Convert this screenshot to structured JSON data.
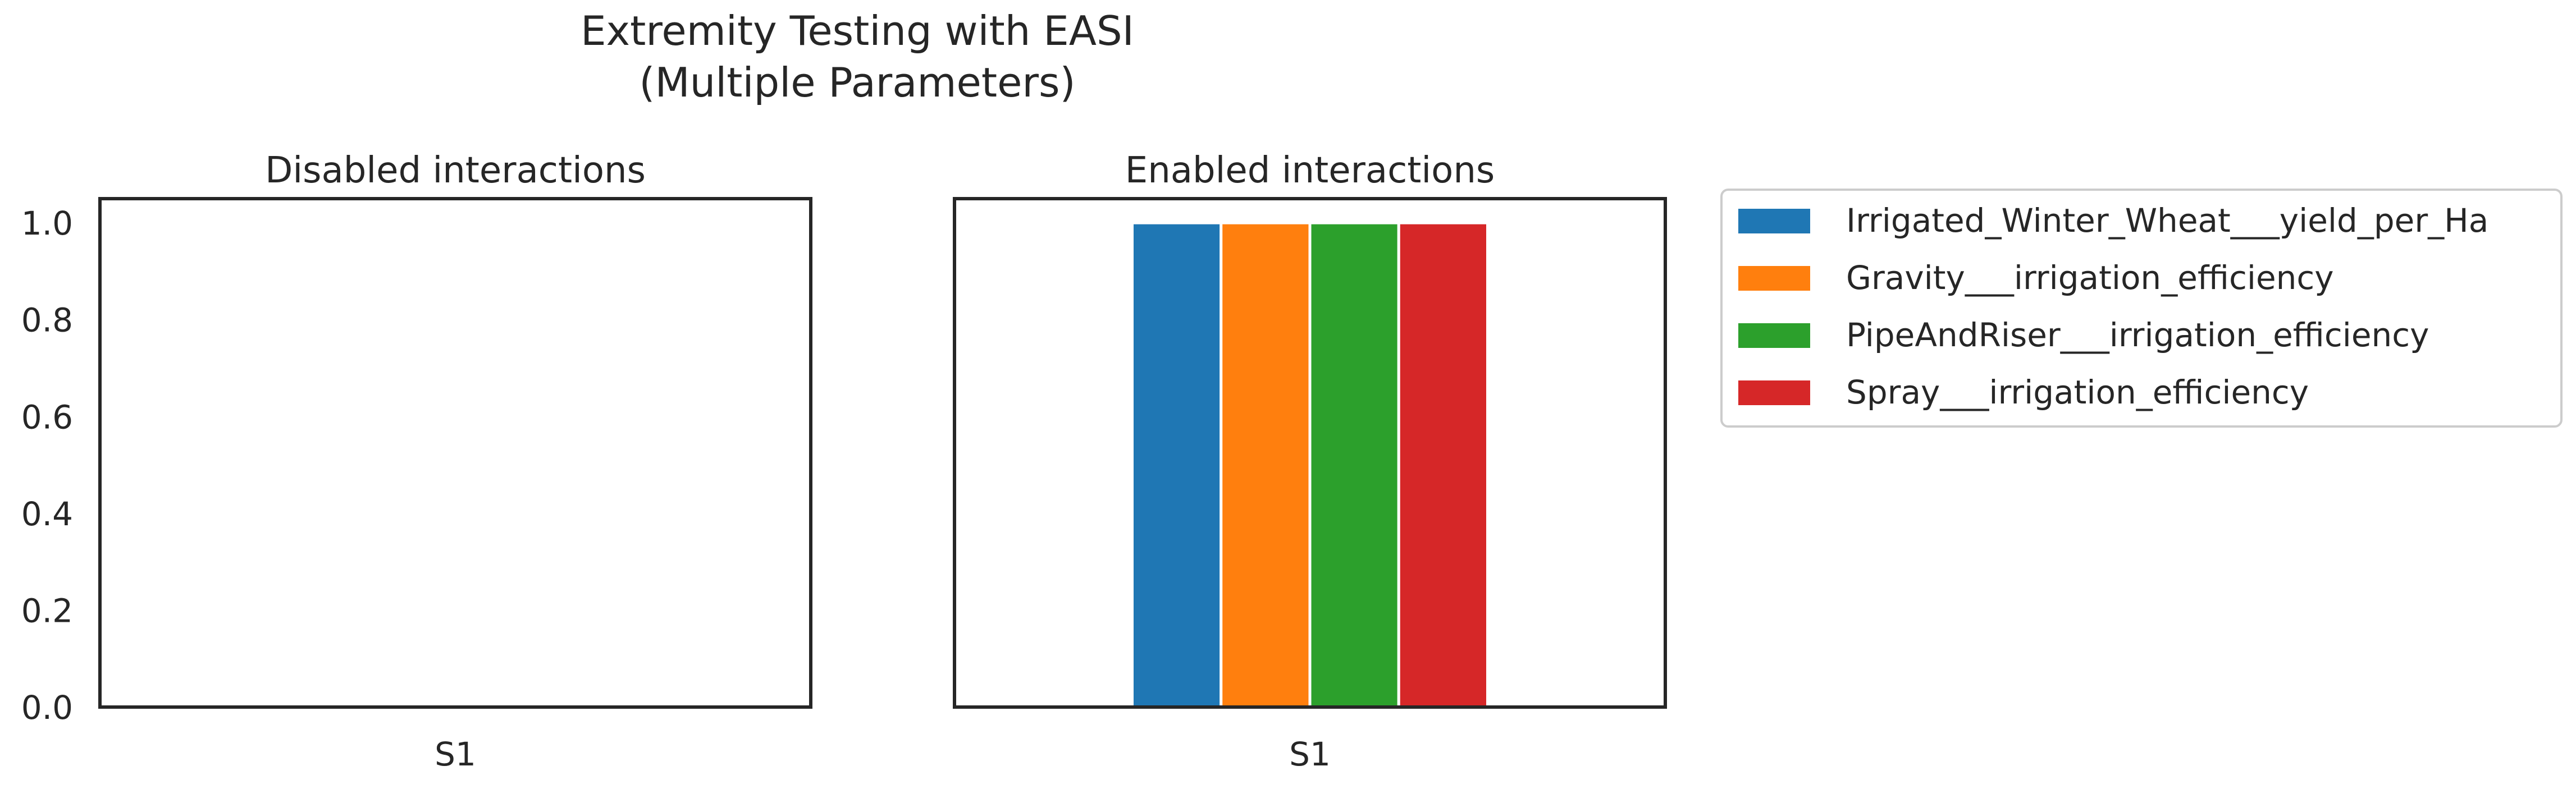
{
  "figure": {
    "title_line1": "Extremity Testing with EASI",
    "title_line2": "(Multiple Parameters)"
  },
  "legend": {
    "entries": [
      {
        "label": "Irrigated_Winter_Wheat___yield_per_Ha",
        "color": "#1f77b4"
      },
      {
        "label": "Gravity___irrigation_efficiency",
        "color": "#ff7f0e"
      },
      {
        "label": "PipeAndRiser___irrigation_efficiency",
        "color": "#2ca02c"
      },
      {
        "label": "Spray___irrigation_efficiency",
        "color": "#d62728"
      }
    ]
  },
  "chart_data": [
    {
      "type": "bar",
      "title": "Disabled interactions",
      "categories": [
        "S1"
      ],
      "series": [
        {
          "name": "Irrigated_Winter_Wheat___yield_per_Ha",
          "values": [
            0
          ],
          "color": "#1f77b4"
        },
        {
          "name": "Gravity___irrigation_efficiency",
          "values": [
            0
          ],
          "color": "#ff7f0e"
        },
        {
          "name": "PipeAndRiser___irrigation_efficiency",
          "values": [
            0
          ],
          "color": "#2ca02c"
        },
        {
          "name": "Spray___irrigation_efficiency",
          "values": [
            0
          ],
          "color": "#d62728"
        }
      ],
      "ylim": [
        0,
        1.05
      ],
      "yticks": [
        "0.0",
        "0.2",
        "0.4",
        "0.6",
        "0.8",
        "1.0"
      ],
      "grid": false,
      "legend": "outside-right"
    },
    {
      "type": "bar",
      "title": "Enabled interactions",
      "categories": [
        "S1"
      ],
      "series": [
        {
          "name": "Irrigated_Winter_Wheat___yield_per_Ha",
          "values": [
            1.0
          ],
          "color": "#1f77b4"
        },
        {
          "name": "Gravity___irrigation_efficiency",
          "values": [
            1.0
          ],
          "color": "#ff7f0e"
        },
        {
          "name": "PipeAndRiser___irrigation_efficiency",
          "values": [
            1.0
          ],
          "color": "#2ca02c"
        },
        {
          "name": "Spray___irrigation_efficiency",
          "values": [
            1.0
          ],
          "color": "#d62728"
        }
      ],
      "ylim": [
        0,
        1.05
      ],
      "yticks": [
        "0.0",
        "0.2",
        "0.4",
        "0.6",
        "0.8",
        "1.0"
      ],
      "grid": false,
      "legend": "outside-right"
    }
  ]
}
